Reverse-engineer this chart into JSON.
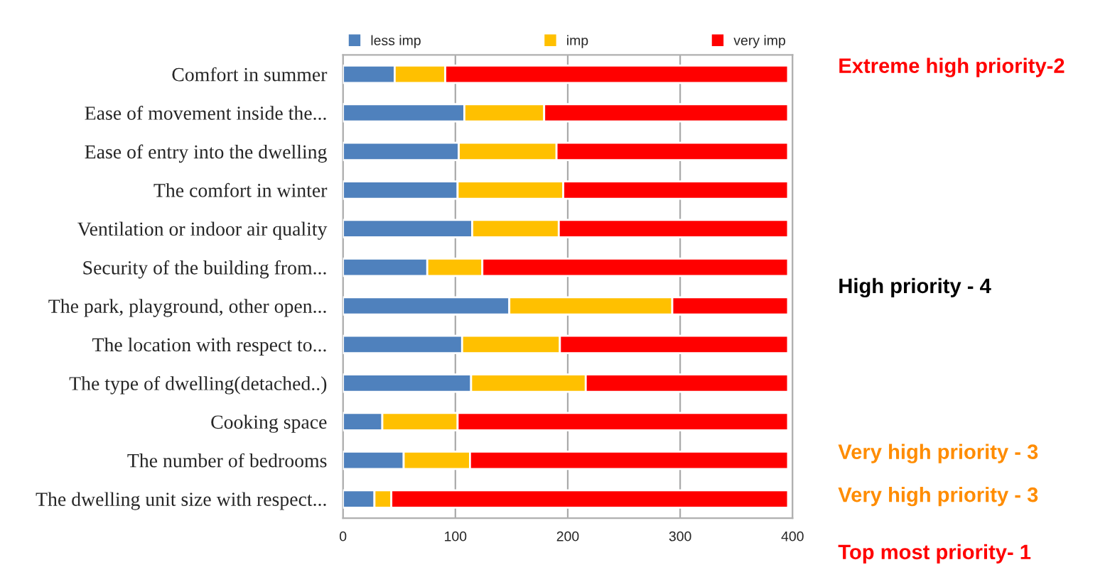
{
  "chart_data": {
    "type": "bar",
    "orientation": "horizontal",
    "stacked": true,
    "categories": [
      "Comfort in summer",
      "Ease of movement inside the...",
      "Ease of entry into the dwelling",
      "The comfort in winter",
      "Ventilation or indoor air quality",
      "Security of the building from...",
      "The park, playground, other open...",
      "The location with respect to...",
      "The type of dwelling(detached..)",
      "Cooking space",
      "The number of bedrooms",
      "The dwelling unit size with respect..."
    ],
    "series": [
      {
        "name": "less imp",
        "color": "#4f81bd",
        "values": [
          46,
          108,
          103,
          102,
          115,
          75,
          148,
          106,
          114,
          35,
          54,
          28
        ]
      },
      {
        "name": "imp",
        "color": "#ffc000",
        "values": [
          45,
          71,
          87,
          94,
          77,
          49,
          145,
          87,
          102,
          67,
          59,
          15
        ]
      },
      {
        "name": "very imp",
        "color": "#ff0000",
        "values": [
          305,
          217,
          206,
          200,
          204,
          272,
          103,
          203,
          180,
          294,
          283,
          353
        ]
      }
    ],
    "xlim": [
      0,
      400
    ],
    "xticks": [
      0,
      100,
      200,
      300,
      400
    ],
    "grid": "x",
    "legend": "top",
    "annotations": [
      "Extreme high priority-2",
      "High priority - 4",
      "Very high priority - 3",
      "Very high priority - 3",
      "Top most priority- 1"
    ]
  }
}
